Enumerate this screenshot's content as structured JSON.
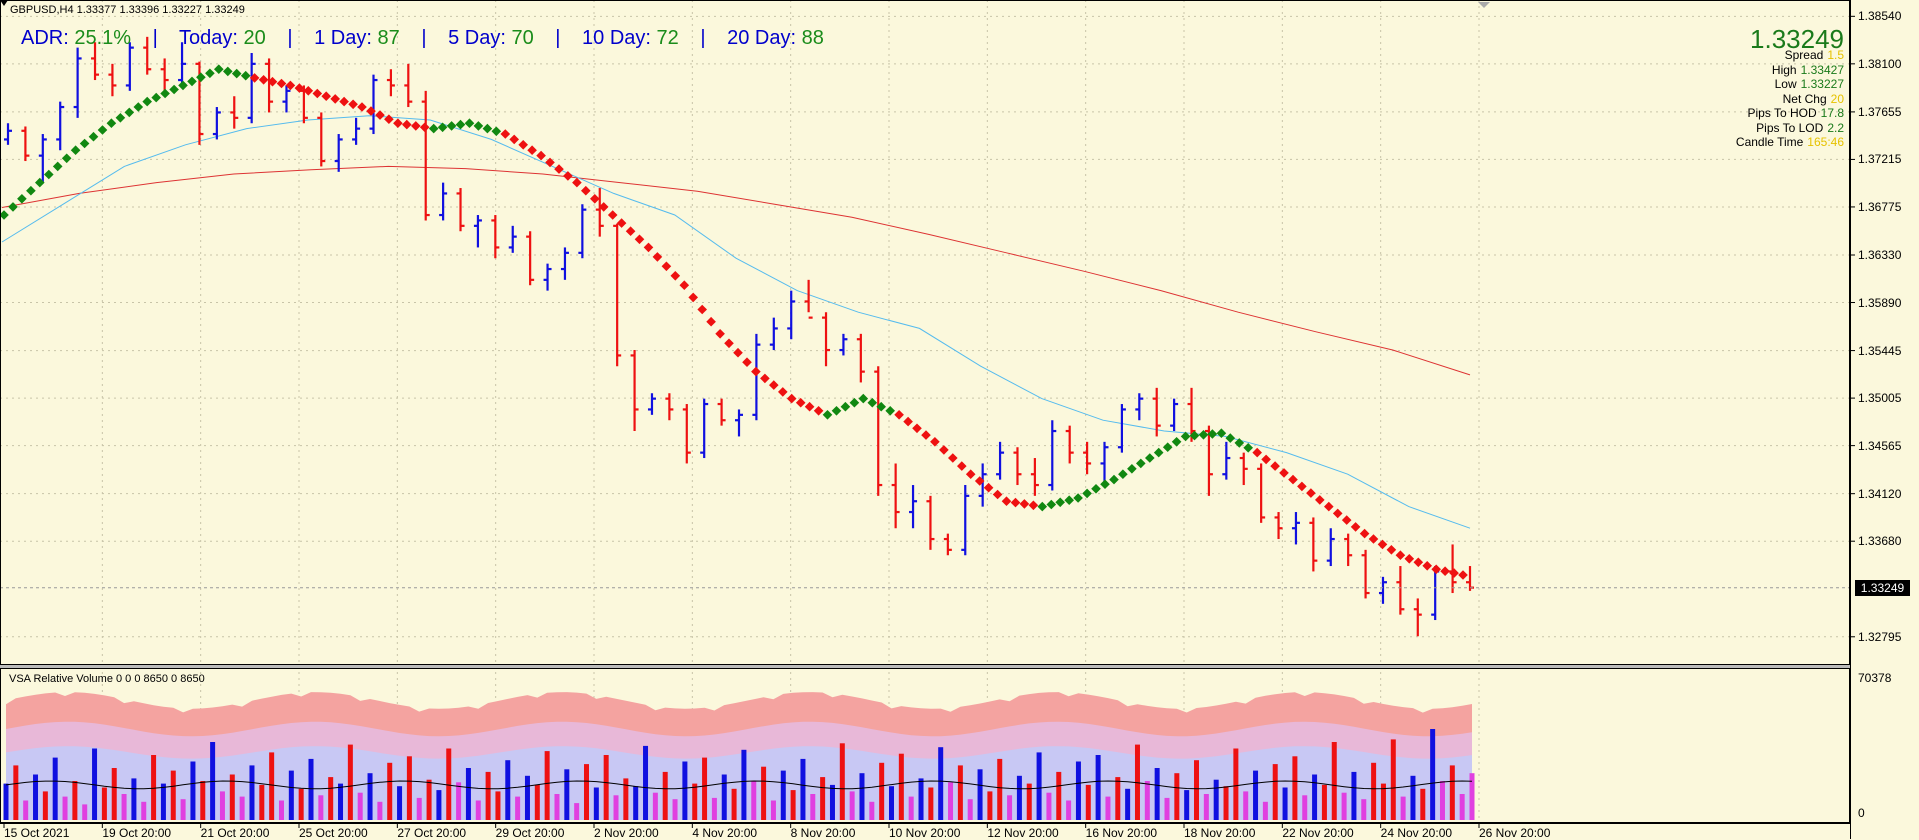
{
  "header": {
    "symbol_line": "GBPUSD,H4  1.33377 1.33396 1.33227 1.33249"
  },
  "adr_bar": {
    "adr_label": "ADR:",
    "adr_value": "25.1%",
    "today_label": "Today:",
    "today_value": "20",
    "d1_label": "1 Day:",
    "d1_value": "87",
    "d5_label": "5 Day:",
    "d5_value": "70",
    "d10_label": "10 Day:",
    "d10_value": "72",
    "d20_label": "20 Day:",
    "d20_value": "88",
    "separator": "|"
  },
  "info_panel": {
    "price": "1.33249",
    "rows": [
      {
        "label": "Spread",
        "value": "1.5",
        "color": "#e6c200"
      },
      {
        "label": "High",
        "value": "1.33427",
        "color": "#1a7a1a"
      },
      {
        "label": "Low",
        "value": "1.33227",
        "color": "#1a7a1a"
      },
      {
        "label": "Net Chg",
        "value": "20",
        "color": "#e6c200"
      },
      {
        "label": "Pips To HOD",
        "value": "17.8",
        "color": "#1a7a1a"
      },
      {
        "label": "Pips To LOD",
        "value": "2.2",
        "color": "#1a7a1a"
      },
      {
        "label": "Candle Time",
        "value": "165:46",
        "color": "#e6c200"
      }
    ]
  },
  "current_price_label": "1.33249",
  "vsa": {
    "title": "VSA Relative Volume 0 0 0 8650 0 8650",
    "max_label": "70378",
    "min_label": "0"
  },
  "colors": {
    "background": "#fbf8dc",
    "up_bar": "#1010e0",
    "down_bar": "#ee1111",
    "ma_fast": "#55bbee",
    "ma_slow": "#dd3333",
    "trend_up": "#118811",
    "trend_down": "#ee1111"
  },
  "chart_data": {
    "type": "ohlc",
    "symbol": "GBPUSD",
    "timeframe": "H4",
    "y_ticks": [
      "1.38540",
      "1.38100",
      "1.37655",
      "1.37215",
      "1.36775",
      "1.36330",
      "1.35890",
      "1.35445",
      "1.35005",
      "1.34565",
      "1.34120",
      "1.33680",
      "1.32795"
    ],
    "x_ticks": [
      "15 Oct 2021",
      "19 Oct 20:00",
      "21 Oct 20:00",
      "25 Oct 20:00",
      "27 Oct 20:00",
      "29 Oct 20:00",
      "2 Nov 20:00",
      "4 Nov 20:00",
      "8 Nov 20:00",
      "10 Nov 20:00",
      "12 Nov 20:00",
      "16 Nov 20:00",
      "18 Nov 20:00",
      "22 Nov 20:00",
      "24 Nov 20:00",
      "26 Nov 20:00"
    ],
    "ylim": [
      1.3258,
      1.3858
    ],
    "trend_path": [
      1.367,
      1.37,
      1.373,
      1.3755,
      1.3775,
      1.379,
      1.3805,
      1.3797,
      1.379,
      1.378,
      1.377,
      1.3755,
      1.375,
      1.3755,
      1.3745,
      1.3725,
      1.37,
      1.367,
      1.364,
      1.3605,
      1.356,
      1.3525,
      1.35,
      1.3485,
      1.35,
      1.3485,
      1.346,
      1.343,
      1.3405,
      1.34,
      1.3408,
      1.3425,
      1.3445,
      1.3465,
      1.3468,
      1.345,
      1.3425,
      1.34,
      1.3375,
      1.3355,
      1.3342,
      1.3335
    ],
    "trend_colors": [
      "up",
      "up",
      "up",
      "up",
      "up",
      "up",
      "up",
      "down",
      "down",
      "down",
      "down",
      "down",
      "up",
      "up",
      "down",
      "down",
      "down",
      "down",
      "down",
      "down",
      "down",
      "down",
      "down",
      "up",
      "up",
      "down",
      "down",
      "down",
      "down",
      "up",
      "up",
      "up",
      "up",
      "up",
      "up",
      "down",
      "down",
      "down",
      "down",
      "down",
      "down",
      "down"
    ],
    "ma_fast": [
      1.3645,
      1.368,
      1.3715,
      1.3735,
      1.375,
      1.3758,
      1.3762,
      1.3758,
      1.374,
      1.3715,
      1.369,
      1.367,
      1.363,
      1.36,
      1.358,
      1.3565,
      1.353,
      1.35,
      1.348,
      1.347,
      1.3465,
      1.345,
      1.343,
      1.34,
      1.338
    ],
    "ma_slow": [
      1.3677,
      1.369,
      1.37,
      1.3708,
      1.3712,
      1.3715,
      1.3713,
      1.3708,
      1.37,
      1.3692,
      1.368,
      1.3668,
      1.3652,
      1.3635,
      1.3618,
      1.36,
      1.358,
      1.3562,
      1.3545,
      1.3522
    ],
    "bars": [
      [
        1.374,
        1.3755,
        1.3735,
        1.3748
      ],
      [
        1.3748,
        1.3752,
        1.372,
        1.3725
      ],
      [
        1.3725,
        1.3745,
        1.37,
        1.374
      ],
      [
        1.374,
        1.3775,
        1.373,
        1.377
      ],
      [
        1.377,
        1.3825,
        1.376,
        1.3815
      ],
      [
        1.3815,
        1.383,
        1.3795,
        1.38
      ],
      [
        1.38,
        1.381,
        1.378,
        1.379
      ],
      [
        1.379,
        1.383,
        1.3785,
        1.3825
      ],
      [
        1.3825,
        1.3835,
        1.38,
        1.3805
      ],
      [
        1.3805,
        1.3815,
        1.3785,
        1.3795
      ],
      [
        1.3795,
        1.383,
        1.379,
        1.381
      ],
      [
        1.381,
        1.3812,
        1.3735,
        1.3745
      ],
      [
        1.3745,
        1.377,
        1.374,
        1.3765
      ],
      [
        1.3765,
        1.378,
        1.375,
        1.376
      ],
      [
        1.376,
        1.382,
        1.3755,
        1.381
      ],
      [
        1.381,
        1.3815,
        1.3765,
        1.3775
      ],
      [
        1.3775,
        1.379,
        1.3765,
        1.3785
      ],
      [
        1.3785,
        1.379,
        1.3755,
        1.376
      ],
      [
        1.376,
        1.3765,
        1.3715,
        1.372
      ],
      [
        1.372,
        1.3745,
        1.371,
        1.374
      ],
      [
        1.374,
        1.376,
        1.3735,
        1.375
      ],
      [
        1.375,
        1.38,
        1.3745,
        1.3795
      ],
      [
        1.3795,
        1.3805,
        1.378,
        1.379
      ],
      [
        1.379,
        1.381,
        1.377,
        1.3775
      ],
      [
        1.3775,
        1.3785,
        1.3665,
        1.367
      ],
      [
        1.367,
        1.37,
        1.3665,
        1.369
      ],
      [
        1.369,
        1.3695,
        1.3655,
        1.366
      ],
      [
        1.366,
        1.367,
        1.364,
        1.3665
      ],
      [
        1.3665,
        1.367,
        1.363,
        1.364
      ],
      [
        1.364,
        1.366,
        1.3635,
        1.365
      ],
      [
        1.365,
        1.3655,
        1.3605,
        1.361
      ],
      [
        1.361,
        1.3625,
        1.36,
        1.362
      ],
      [
        1.362,
        1.364,
        1.361,
        1.3635
      ],
      [
        1.3635,
        1.368,
        1.363,
        1.3675
      ],
      [
        1.3675,
        1.3695,
        1.365,
        1.366
      ],
      [
        1.366,
        1.3662,
        1.353,
        1.354
      ],
      [
        1.354,
        1.3545,
        1.347,
        1.349
      ],
      [
        1.349,
        1.3505,
        1.3485,
        1.35
      ],
      [
        1.35,
        1.3505,
        1.348,
        1.349
      ],
      [
        1.349,
        1.3495,
        1.344,
        1.345
      ],
      [
        1.345,
        1.35,
        1.3445,
        1.3495
      ],
      [
        1.3495,
        1.35,
        1.3475,
        1.348
      ],
      [
        1.348,
        1.349,
        1.3465,
        1.3485
      ],
      [
        1.3485,
        1.356,
        1.348,
        1.355
      ],
      [
        1.355,
        1.3575,
        1.3545,
        1.3565
      ],
      [
        1.3565,
        1.36,
        1.3555,
        1.359
      ],
      [
        1.359,
        1.361,
        1.358,
        1.3575
      ],
      [
        1.3575,
        1.358,
        1.353,
        1.3545
      ],
      [
        1.3545,
        1.356,
        1.354,
        1.3555
      ],
      [
        1.3555,
        1.356,
        1.3515,
        1.3525
      ],
      [
        1.3525,
        1.353,
        1.341,
        1.342
      ],
      [
        1.342,
        1.344,
        1.338,
        1.3395
      ],
      [
        1.3395,
        1.342,
        1.338,
        1.3405
      ],
      [
        1.3405,
        1.341,
        1.336,
        1.337
      ],
      [
        1.337,
        1.3375,
        1.3355,
        1.336
      ],
      [
        1.336,
        1.342,
        1.3355,
        1.341
      ],
      [
        1.341,
        1.344,
        1.34,
        1.343
      ],
      [
        1.343,
        1.346,
        1.3425,
        1.345
      ],
      [
        1.345,
        1.3455,
        1.342,
        1.343
      ],
      [
        1.343,
        1.3445,
        1.341,
        1.342
      ],
      [
        1.342,
        1.348,
        1.3415,
        1.347
      ],
      [
        1.347,
        1.3475,
        1.344,
        1.345
      ],
      [
        1.345,
        1.346,
        1.343,
        1.344
      ],
      [
        1.344,
        1.346,
        1.342,
        1.3455
      ],
      [
        1.3455,
        1.3495,
        1.345,
        1.349
      ],
      [
        1.349,
        1.3505,
        1.348,
        1.35
      ],
      [
        1.35,
        1.351,
        1.3465,
        1.3475
      ],
      [
        1.3475,
        1.35,
        1.347,
        1.3495
      ],
      [
        1.3495,
        1.351,
        1.346,
        1.347
      ],
      [
        1.347,
        1.3475,
        1.341,
        1.343
      ],
      [
        1.343,
        1.346,
        1.3425,
        1.3445
      ],
      [
        1.3445,
        1.345,
        1.342,
        1.3435
      ],
      [
        1.3435,
        1.344,
        1.3385,
        1.339
      ],
      [
        1.339,
        1.3395,
        1.337,
        1.338
      ],
      [
        1.338,
        1.3395,
        1.3365,
        1.3385
      ],
      [
        1.3385,
        1.339,
        1.334,
        1.335
      ],
      [
        1.335,
        1.338,
        1.3345,
        1.337
      ],
      [
        1.337,
        1.3375,
        1.3345,
        1.3355
      ],
      [
        1.3355,
        1.336,
        1.3315,
        1.332
      ],
      [
        1.332,
        1.3335,
        1.331,
        1.333
      ],
      [
        1.333,
        1.3345,
        1.33,
        1.3305
      ],
      [
        1.3305,
        1.3315,
        1.328,
        1.33
      ],
      [
        1.33,
        1.3345,
        1.3295,
        1.334
      ],
      [
        1.334,
        1.3365,
        1.332,
        1.333
      ],
      [
        1.333,
        1.3345,
        1.3322,
        1.3325
      ]
    ],
    "volume": {
      "bars": [
        0.28,
        0.42,
        0.15,
        0.35,
        0.22,
        0.48,
        0.18,
        0.3,
        0.12,
        0.55,
        0.25,
        0.4,
        0.2,
        0.32,
        0.14,
        0.5,
        0.28,
        0.38,
        0.16,
        0.45,
        0.3,
        0.6,
        0.22,
        0.35,
        0.18,
        0.42,
        0.27,
        0.52,
        0.15,
        0.38,
        0.24,
        0.47,
        0.19,
        0.33,
        0.28,
        0.58,
        0.21,
        0.36,
        0.14,
        0.44,
        0.26,
        0.49,
        0.17,
        0.31,
        0.23,
        0.55,
        0.29,
        0.4,
        0.15,
        0.37,
        0.22,
        0.46,
        0.18,
        0.34,
        0.27,
        0.53,
        0.2,
        0.39,
        0.13,
        0.43,
        0.25,
        0.5,
        0.19,
        0.32,
        0.26,
        0.57,
        0.21,
        0.37,
        0.16,
        0.45,
        0.28,
        0.48,
        0.17,
        0.35,
        0.24,
        0.54,
        0.3,
        0.41,
        0.15,
        0.38,
        0.23,
        0.47,
        0.2,
        0.33,
        0.27,
        0.59,
        0.22,
        0.36,
        0.14,
        0.44,
        0.26,
        0.51,
        0.18,
        0.32,
        0.25,
        0.56,
        0.29,
        0.42,
        0.16,
        0.39,
        0.22,
        0.47,
        0.19,
        0.34,
        0.28,
        0.52,
        0.21,
        0.37,
        0.15,
        0.45,
        0.27,
        0.5,
        0.18,
        0.33,
        0.24,
        0.58,
        0.3,
        0.4,
        0.17,
        0.36,
        0.23,
        0.46,
        0.2,
        0.31,
        0.26,
        0.55,
        0.22,
        0.38,
        0.14,
        0.43,
        0.25,
        0.49,
        0.19,
        0.35,
        0.27,
        0.6,
        0.21,
        0.37,
        0.16,
        0.44,
        0.28,
        0.62,
        0.18,
        0.34,
        0.24,
        0.7,
        0.3,
        0.42,
        0.2,
        0.36
      ],
      "colors": [
        "b",
        "r",
        "m",
        "b",
        "r",
        "b",
        "m",
        "r",
        "m",
        "b",
        "r",
        "r",
        "m",
        "b",
        "m",
        "r",
        "b",
        "r",
        "m",
        "b",
        "r",
        "b",
        "m",
        "r",
        "m",
        "b",
        "r",
        "r",
        "m",
        "b",
        "r",
        "b",
        "m",
        "r",
        "b",
        "r",
        "m",
        "b",
        "m",
        "r",
        "b",
        "r",
        "m",
        "r",
        "b",
        "r",
        "m",
        "b",
        "m",
        "r",
        "r",
        "b",
        "m",
        "b",
        "r",
        "r",
        "m",
        "b",
        "m",
        "r",
        "b",
        "r",
        "m",
        "r",
        "b",
        "b",
        "m",
        "r",
        "m",
        "b",
        "r",
        "r",
        "m",
        "b",
        "r",
        "b",
        "m",
        "r",
        "m",
        "b",
        "r",
        "b",
        "m",
        "r",
        "b",
        "r",
        "m",
        "b",
        "m",
        "r",
        "b",
        "r",
        "m",
        "b",
        "r",
        "b",
        "m",
        "r",
        "m",
        "b",
        "r",
        "r",
        "m",
        "b",
        "r",
        "b",
        "m",
        "r",
        "m",
        "b",
        "r",
        "b",
        "m",
        "r",
        "b",
        "r",
        "m",
        "b",
        "m",
        "r",
        "b",
        "r",
        "m",
        "b",
        "r",
        "r",
        "m",
        "b",
        "m",
        "r",
        "b",
        "r",
        "m",
        "b",
        "r",
        "r",
        "m",
        "b",
        "m",
        "r",
        "r",
        "r",
        "m",
        "b",
        "r",
        "b",
        "m",
        "r",
        "m",
        "m"
      ]
    }
  }
}
